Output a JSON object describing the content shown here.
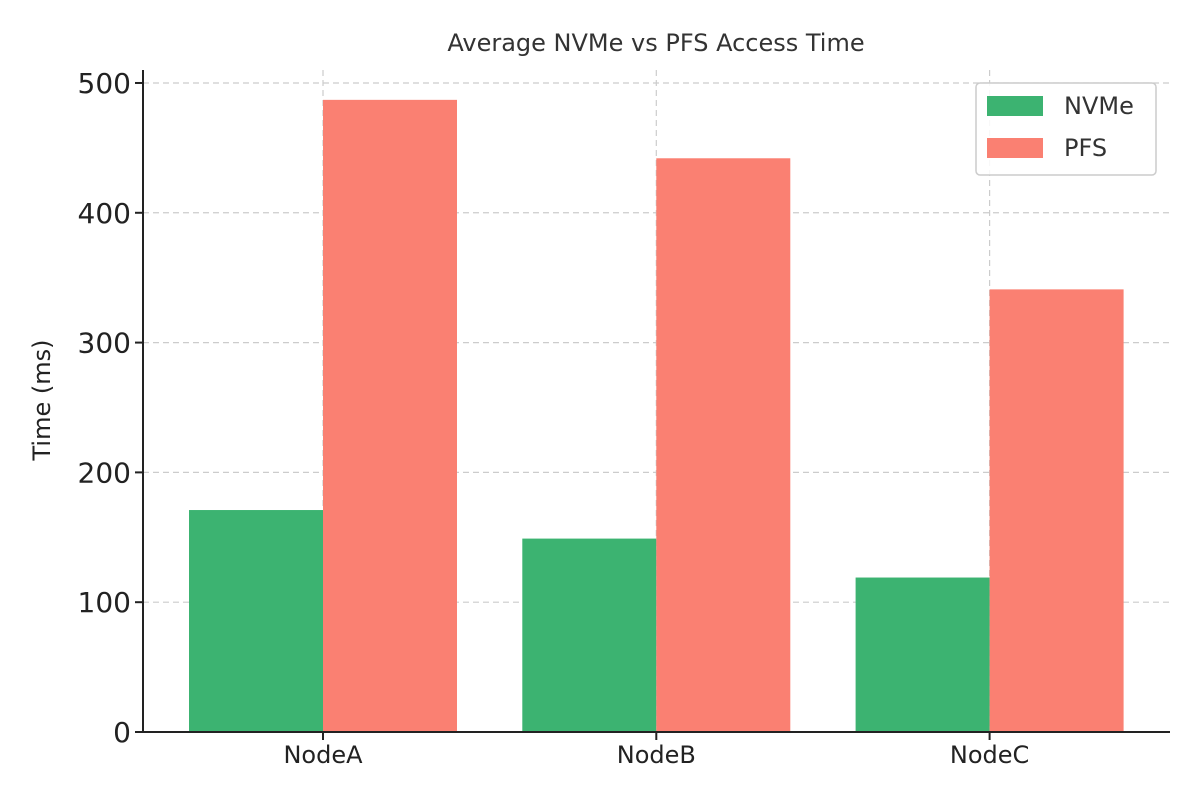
{
  "chart_data": {
    "type": "bar",
    "title": "Average NVMe vs PFS Access Time",
    "xlabel": "",
    "ylabel": "Time (ms)",
    "categories": [
      "NodeA",
      "NodeB",
      "NodeC"
    ],
    "series": [
      {
        "name": "NVMe",
        "values": [
          171,
          149,
          119
        ],
        "color": "#3cb371"
      },
      {
        "name": "PFS",
        "values": [
          487,
          442,
          341
        ],
        "color": "#fa8072"
      }
    ],
    "ylim": [
      0,
      510
    ],
    "yticks": [
      0,
      100,
      200,
      300,
      400,
      500
    ],
    "grid": true,
    "legend_position": "top-right"
  }
}
